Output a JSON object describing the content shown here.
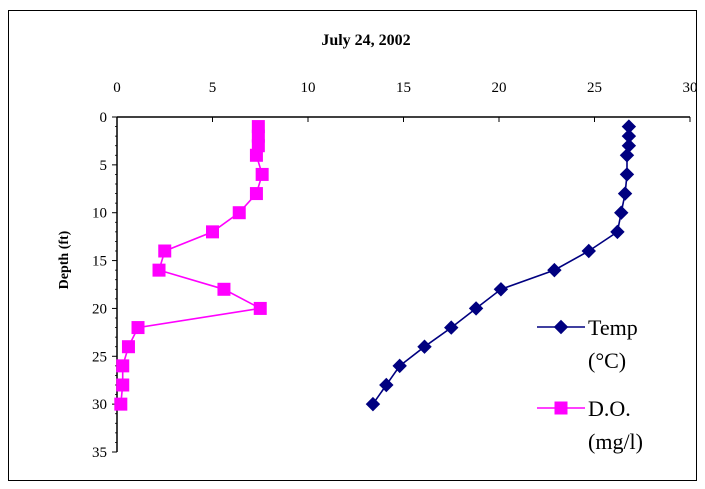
{
  "chart_data": {
    "type": "line",
    "title": "July 24, 2002",
    "xlabel": "",
    "ylabel": "Depth (ft)",
    "xlim": [
      0,
      30
    ],
    "ylim": [
      0,
      35
    ],
    "y_inverted": true,
    "x_axis_position": "top",
    "x_ticks": [
      0,
      5,
      10,
      15,
      20,
      25,
      30
    ],
    "y_ticks": [
      0,
      5,
      10,
      15,
      20,
      25,
      30,
      35
    ],
    "grid": false,
    "legend_position": "right",
    "series": [
      {
        "name": "Temp (°C)",
        "legend_lines": [
          "Temp",
          "(°C)"
        ],
        "color": "#000080",
        "marker": "diamond",
        "points": [
          {
            "x": 26.8,
            "y": 1
          },
          {
            "x": 26.8,
            "y": 2
          },
          {
            "x": 26.8,
            "y": 3
          },
          {
            "x": 26.7,
            "y": 4
          },
          {
            "x": 26.7,
            "y": 6
          },
          {
            "x": 26.6,
            "y": 8
          },
          {
            "x": 26.4,
            "y": 10
          },
          {
            "x": 26.2,
            "y": 12
          },
          {
            "x": 24.7,
            "y": 14
          },
          {
            "x": 22.9,
            "y": 16
          },
          {
            "x": 20.1,
            "y": 18
          },
          {
            "x": 18.8,
            "y": 20
          },
          {
            "x": 17.5,
            "y": 22
          },
          {
            "x": 16.1,
            "y": 24
          },
          {
            "x": 14.8,
            "y": 26
          },
          {
            "x": 14.1,
            "y": 28
          },
          {
            "x": 13.4,
            "y": 30
          }
        ]
      },
      {
        "name": "D.O. (mg/l)",
        "legend_lines": [
          "D.O.",
          "(mg/l)"
        ],
        "color": "#FF00FF",
        "marker": "square",
        "points": [
          {
            "x": 7.4,
            "y": 1
          },
          {
            "x": 7.4,
            "y": 2
          },
          {
            "x": 7.4,
            "y": 3
          },
          {
            "x": 7.3,
            "y": 4
          },
          {
            "x": 7.6,
            "y": 6
          },
          {
            "x": 7.3,
            "y": 8
          },
          {
            "x": 6.4,
            "y": 10
          },
          {
            "x": 5.0,
            "y": 12
          },
          {
            "x": 2.5,
            "y": 14
          },
          {
            "x": 2.2,
            "y": 16
          },
          {
            "x": 5.6,
            "y": 18
          },
          {
            "x": 7.5,
            "y": 20
          },
          {
            "x": 1.1,
            "y": 22
          },
          {
            "x": 0.6,
            "y": 24
          },
          {
            "x": 0.3,
            "y": 26
          },
          {
            "x": 0.3,
            "y": 28
          },
          {
            "x": 0.2,
            "y": 30
          }
        ]
      }
    ]
  }
}
